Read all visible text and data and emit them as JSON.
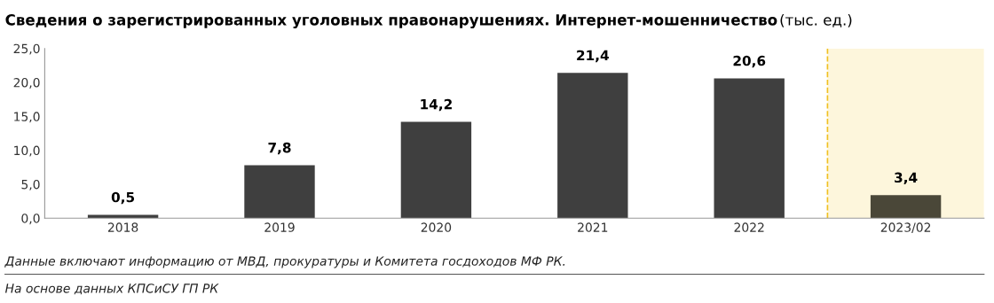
{
  "chart_data": {
    "type": "bar",
    "title": "Сведения о зарегистрированных уголовных правонарушениях. Интернет-мошенничество",
    "subtitle": "(тыс. ед.)",
    "categories": [
      "2018",
      "2019",
      "2020",
      "2021",
      "2022",
      "2023/02"
    ],
    "values": [
      0.5,
      7.8,
      14.2,
      21.4,
      20.6,
      3.4
    ],
    "colors": [
      "#3f3f3f",
      "#3f3f3f",
      "#3f3f3f",
      "#3f3f3f",
      "#3f3f3f",
      "#4a4738"
    ],
    "value_labels": [
      "0,5",
      "7,8",
      "14,2",
      "21,4",
      "20,6",
      "3,4"
    ],
    "ylim": [
      0,
      25
    ],
    "yticks": [
      {
        "value": 0,
        "label": "0,0"
      },
      {
        "value": 5,
        "label": "5,0"
      },
      {
        "value": 10,
        "label": "10,0"
      },
      {
        "value": 15,
        "label": "15,0"
      },
      {
        "value": 20,
        "label": "20,0"
      },
      {
        "value": 25,
        "label": "25,0"
      }
    ],
    "bands": [
      {
        "axis": "x",
        "from": "2023/02",
        "to": "2023/02",
        "color": "#fdf6dc"
      }
    ],
    "ref_lines": [
      {
        "axis": "x",
        "value": "2023/02",
        "color": "#f0c020",
        "line_style": "dashed"
      }
    ],
    "grid": false,
    "annotations": [
      "Данные включают информацию от МВД, прокуратуры и Комитета госдоходов МФ РК.",
      "На основе данных КПСиСУ ГП РК"
    ]
  }
}
